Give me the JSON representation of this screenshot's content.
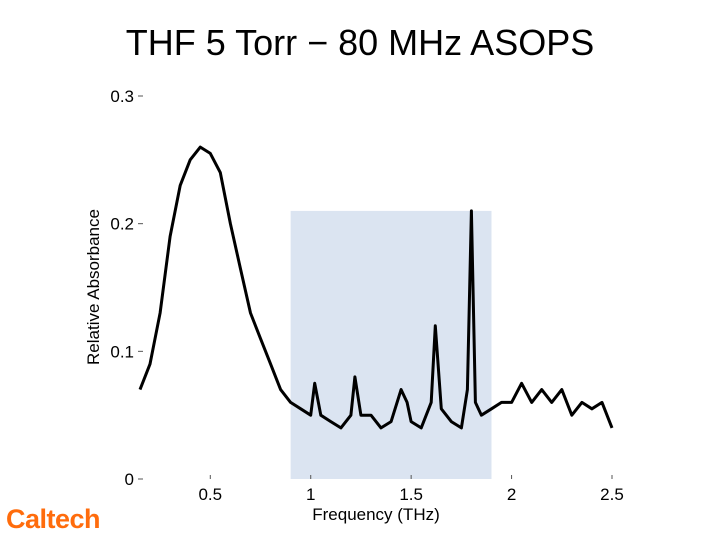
{
  "slide": {
    "title": "THF 5 Torr − 80 MHz ASOPS",
    "logo": "Caltech"
  },
  "colors": {
    "trace": "#000000",
    "highlight": "#dbe4f1",
    "logo": "#ff6c0c"
  },
  "chart_data": {
    "type": "line",
    "title": "THF 5 Torr − 80 MHz ASOPS",
    "xlabel": "Frequency (THz)",
    "ylabel": "Relative Absorbance",
    "xlim": [
      0.15,
      2.5
    ],
    "ylim": [
      0,
      0.3
    ],
    "x_ticks": [
      {
        "value": 0.5,
        "label": "0.5"
      },
      {
        "value": 1,
        "label": "1"
      },
      {
        "value": 1.5,
        "label": "1.5"
      },
      {
        "value": 2,
        "label": "2"
      },
      {
        "value": 2.5,
        "label": "2.5"
      }
    ],
    "y_ticks": [
      {
        "value": 0,
        "label": "0"
      },
      {
        "value": 0.1,
        "label": "0.1"
      },
      {
        "value": 0.2,
        "label": "0.2"
      },
      {
        "value": 0.3,
        "label": "0.3"
      }
    ],
    "highlight_region": {
      "x": [
        0.9,
        1.9
      ],
      "y": [
        0,
        0.21
      ]
    },
    "series": [
      {
        "name": "",
        "x": [
          0.15,
          0.2,
          0.25,
          0.3,
          0.35,
          0.4,
          0.45,
          0.5,
          0.55,
          0.6,
          0.65,
          0.7,
          0.75,
          0.8,
          0.85,
          0.9,
          0.95,
          1.0,
          1.02,
          1.05,
          1.1,
          1.15,
          1.2,
          1.22,
          1.25,
          1.3,
          1.35,
          1.4,
          1.45,
          1.48,
          1.5,
          1.55,
          1.6,
          1.62,
          1.65,
          1.7,
          1.75,
          1.78,
          1.8,
          1.82,
          1.85,
          1.9,
          1.95,
          2.0,
          2.05,
          2.1,
          2.15,
          2.2,
          2.25,
          2.3,
          2.35,
          2.4,
          2.45,
          2.5
        ],
        "y": [
          0.07,
          0.09,
          0.13,
          0.19,
          0.23,
          0.25,
          0.26,
          0.255,
          0.24,
          0.2,
          0.165,
          0.13,
          0.11,
          0.09,
          0.07,
          0.06,
          0.055,
          0.05,
          0.075,
          0.05,
          0.045,
          0.04,
          0.05,
          0.08,
          0.05,
          0.05,
          0.04,
          0.045,
          0.07,
          0.06,
          0.045,
          0.04,
          0.06,
          0.12,
          0.055,
          0.045,
          0.04,
          0.07,
          0.21,
          0.06,
          0.05,
          0.055,
          0.06,
          0.06,
          0.075,
          0.06,
          0.07,
          0.06,
          0.07,
          0.05,
          0.06,
          0.055,
          0.06,
          0.04
        ]
      }
    ],
    "legend": "none",
    "grid": false
  }
}
